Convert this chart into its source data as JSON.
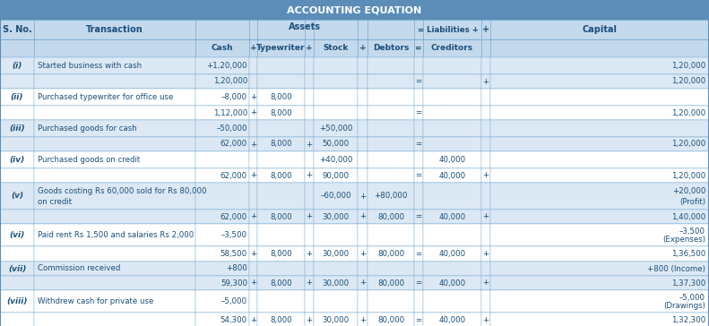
{
  "title": "ACCOUNTING EQUATION",
  "title_bg": "#5b8db8",
  "header_bg": "#c5d9ed",
  "row_bg_even": "#dce9f5",
  "row_bg_odd": "#ffffff",
  "text_color": "#1a4f7a",
  "border_color": "#7aafd4",
  "outer_border": "#5b8db8",
  "rows": [
    {
      "sno": "(i)",
      "transaction": "Started business with cash",
      "cash": "+1,20,000",
      "tw": "",
      "stock": "",
      "debtors": "",
      "cred": "",
      "cap": "1,20,000",
      "b_cash": "1,20,000",
      "b_tw": "",
      "b_stock": "",
      "b_deb": "",
      "b_cred": "",
      "b_cap": "1,20,000",
      "b_plus_tw": false,
      "b_plus_stock": false,
      "b_plus_deb": false,
      "b_plus_cred": true,
      "t_plus_tw": false,
      "t_plus_stock": false,
      "t_plus_deb": false
    },
    {
      "sno": "(ii)",
      "transaction": "Purchased typewriter for office use",
      "cash": "–8,000",
      "tw": "8,000",
      "stock": "",
      "debtors": "",
      "cred": "",
      "cap": "",
      "b_cash": "1,12,000",
      "b_tw": "8,000",
      "b_stock": "",
      "b_deb": "",
      "b_cred": "",
      "b_cap": "1,20,000",
      "b_plus_tw": true,
      "b_plus_stock": false,
      "b_plus_deb": false,
      "b_plus_cred": false,
      "t_plus_tw": true,
      "t_plus_stock": false,
      "t_plus_deb": false
    },
    {
      "sno": "(iii)",
      "transaction": "Purchased goods for cash",
      "cash": "–50,000",
      "tw": "",
      "stock": "+50,000",
      "debtors": "",
      "cred": "",
      "cap": "",
      "b_cash": "62,000",
      "b_tw": "8,000",
      "b_stock": "50,000",
      "b_deb": "",
      "b_cred": "",
      "b_cap": "1,20,000",
      "b_plus_tw": true,
      "b_plus_stock": true,
      "b_plus_deb": false,
      "b_plus_cred": false,
      "t_plus_tw": false,
      "t_plus_stock": false,
      "t_plus_deb": false
    },
    {
      "sno": "(iv)",
      "transaction": "Purchased goods on credit",
      "cash": "",
      "tw": "",
      "stock": "+40,000",
      "debtors": "",
      "cred": "40,000",
      "cap": "",
      "b_cash": "62,000",
      "b_tw": "8,000",
      "b_stock": "90,000",
      "b_deb": "",
      "b_cred": "40,000",
      "b_cap": "1,20,000",
      "b_plus_tw": true,
      "b_plus_stock": true,
      "b_plus_deb": false,
      "b_plus_cred": true,
      "t_plus_tw": false,
      "t_plus_stock": false,
      "t_plus_deb": false
    },
    {
      "sno": "(v)",
      "transaction": "Goods costing Rs 60,000 sold for Rs 80,000\non credit",
      "cash": "",
      "tw": "",
      "stock": "–60,000",
      "debtors": "+80,000",
      "cred": "",
      "cap": "+20,000\n(Profit)",
      "b_cash": "62,000",
      "b_tw": "8,000",
      "b_stock": "30,000",
      "b_deb": "80,000",
      "b_cred": "40,000",
      "b_cap": "1,40,000",
      "b_plus_tw": true,
      "b_plus_stock": true,
      "b_plus_deb": true,
      "b_plus_cred": true,
      "t_plus_tw": false,
      "t_plus_stock": false,
      "t_plus_deb": true
    },
    {
      "sno": "(vi)",
      "transaction": "Paid rent Rs 1,500 and salaries Rs 2,000",
      "cash": "–3,500",
      "tw": "",
      "stock": "",
      "debtors": "",
      "cred": "",
      "cap": "–3,500\n(Expenses)",
      "b_cash": "58,500",
      "b_tw": "8,000",
      "b_stock": "30,000",
      "b_deb": "80,000",
      "b_cred": "40,000",
      "b_cap": "1,36,500",
      "b_plus_tw": true,
      "b_plus_stock": true,
      "b_plus_deb": true,
      "b_plus_cred": true,
      "t_plus_tw": false,
      "t_plus_stock": false,
      "t_plus_deb": false
    },
    {
      "sno": "(vii)",
      "transaction": "Commission received",
      "cash": "+800",
      "tw": "",
      "stock": "",
      "debtors": "",
      "cred": "",
      "cap": "+800 (Income)",
      "b_cash": "59,300",
      "b_tw": "8,000",
      "b_stock": "30,000",
      "b_deb": "80,000",
      "b_cred": "40,000",
      "b_cap": "1,37,300",
      "b_plus_tw": true,
      "b_plus_stock": true,
      "b_plus_deb": true,
      "b_plus_cred": true,
      "t_plus_tw": false,
      "t_plus_stock": false,
      "t_plus_deb": false
    },
    {
      "sno": "(viii)",
      "transaction": "Withdrew cash for private use",
      "cash": "–5,000",
      "tw": "",
      "stock": "",
      "debtors": "",
      "cred": "",
      "cap": "–5,000\n(Drawings)",
      "b_cash": "54,300",
      "b_tw": "8,000",
      "b_stock": "30,000",
      "b_deb": "80,000",
      "b_cred": "40,000",
      "b_cap": "1,32,300",
      "b_plus_tw": true,
      "b_plus_stock": true,
      "b_plus_deb": true,
      "b_plus_cred": true,
      "t_plus_tw": false,
      "t_plus_stock": false,
      "t_plus_deb": false
    }
  ]
}
